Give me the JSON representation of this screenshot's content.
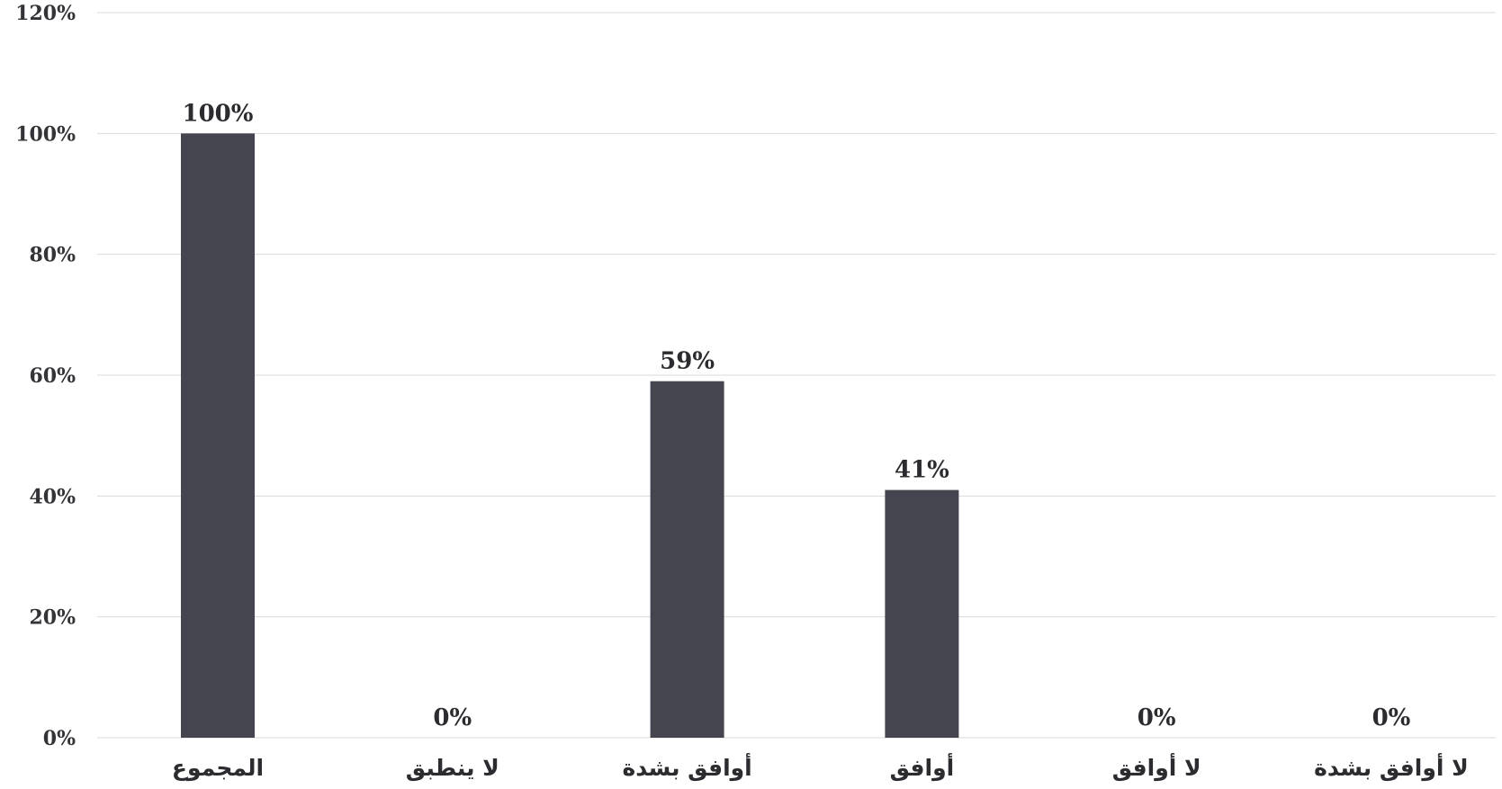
{
  "chart_data": {
    "type": "bar",
    "title": "",
    "xlabel": "",
    "ylabel": "",
    "categories": [
      "المجموع",
      "لا ينطبق",
      "أوافق بشدة",
      "أوافق",
      "لا أوافق",
      "لا أوافق بشدة"
    ],
    "values": [
      100,
      0,
      59,
      41,
      0,
      0
    ],
    "data_labels": [
      "100%",
      "0%",
      "59%",
      "41%",
      "0%",
      "0%"
    ],
    "ylim": [
      0,
      120
    ],
    "yticks": [
      0,
      20,
      40,
      60,
      80,
      100,
      120
    ],
    "ytick_labels": [
      "0%",
      "20%",
      "40%",
      "60%",
      "80%",
      "100%",
      "120%"
    ],
    "grid": true,
    "legend": "none",
    "bar_color": "#45454f"
  }
}
